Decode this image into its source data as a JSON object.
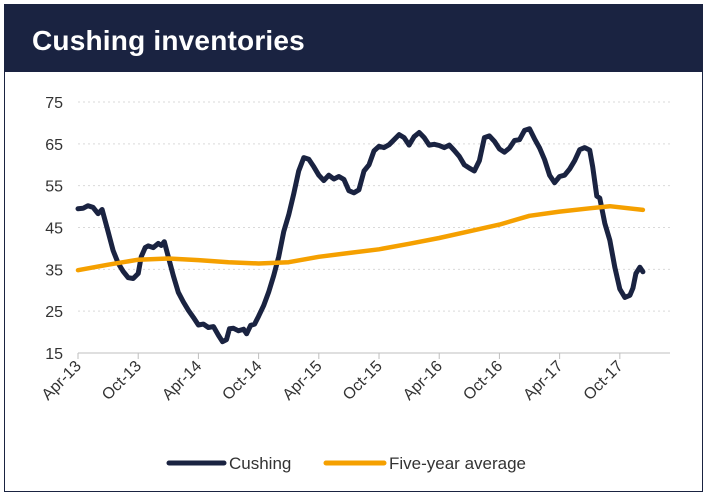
{
  "title": "Cushing inventories",
  "colors": {
    "header": "#1a2341",
    "cushing": "#1a2341",
    "average": "#f5a000",
    "grid": "#d9d9d9"
  },
  "chart_data": {
    "type": "line",
    "ylim": [
      15,
      75
    ],
    "yticks": [
      15,
      25,
      35,
      45,
      55,
      65,
      75
    ],
    "x_tick_labels": [
      "Apr-13",
      "Oct-13",
      "Apr-14",
      "Oct-14",
      "Apr-15",
      "Oct-15",
      "Apr-16",
      "Oct-16",
      "Apr-17",
      "Oct-17"
    ],
    "x_range_months": [
      0,
      59
    ],
    "grid": "horizontal dotted",
    "legend_position": "bottom-center",
    "series": [
      {
        "name": "Cushing",
        "color": "#1a2341",
        "points": [
          [
            0,
            49.5
          ],
          [
            0.5,
            49.6
          ],
          [
            1,
            50.2
          ],
          [
            1.5,
            49.8
          ],
          [
            2,
            48.3
          ],
          [
            2.4,
            49.3
          ],
          [
            3,
            44
          ],
          [
            3.5,
            39.5
          ],
          [
            4,
            36.5
          ],
          [
            4.5,
            34.5
          ],
          [
            5,
            33
          ],
          [
            5.5,
            32.8
          ],
          [
            6,
            34
          ],
          [
            6.3,
            38
          ],
          [
            6.7,
            40.2
          ],
          [
            7,
            40.6
          ],
          [
            7.5,
            40.2
          ],
          [
            8,
            41.2
          ],
          [
            8.3,
            40.7
          ],
          [
            8.6,
            41.6
          ],
          [
            9,
            38
          ],
          [
            9.5,
            33.5
          ],
          [
            10,
            29.5
          ],
          [
            10.5,
            27.2
          ],
          [
            11,
            25.2
          ],
          [
            11.5,
            23.5
          ],
          [
            12,
            21.7
          ],
          [
            12.5,
            21.9
          ],
          [
            13,
            21.1
          ],
          [
            13.5,
            21.3
          ],
          [
            14,
            19.2
          ],
          [
            14.4,
            17.7
          ],
          [
            14.8,
            18.2
          ],
          [
            15.1,
            20.8
          ],
          [
            15.5,
            20.9
          ],
          [
            16,
            20.3
          ],
          [
            16.5,
            20.7
          ],
          [
            16.8,
            19.6
          ],
          [
            17.2,
            21.6
          ],
          [
            17.6,
            21.9
          ],
          [
            18,
            23.8
          ],
          [
            18.5,
            26.3
          ],
          [
            19,
            29.5
          ],
          [
            19.5,
            33.5
          ],
          [
            20,
            38
          ],
          [
            20.5,
            44
          ],
          [
            21,
            48
          ],
          [
            21.5,
            53
          ],
          [
            22,
            58.5
          ],
          [
            22.5,
            61.7
          ],
          [
            23,
            61.3
          ],
          [
            23.5,
            59.5
          ],
          [
            24,
            57.5
          ],
          [
            24.5,
            56.2
          ],
          [
            25,
            57.5
          ],
          [
            25.5,
            56.6
          ],
          [
            26,
            57.2
          ],
          [
            26.5,
            56.5
          ],
          [
            27,
            53.8
          ],
          [
            27.5,
            53.3
          ],
          [
            28,
            54
          ],
          [
            28.5,
            58.5
          ],
          [
            29,
            60
          ],
          [
            29.5,
            63.3
          ],
          [
            30,
            64.4
          ],
          [
            30.5,
            64.1
          ],
          [
            31,
            64.8
          ],
          [
            31.5,
            66
          ],
          [
            32,
            67.2
          ],
          [
            32.5,
            66.5
          ],
          [
            33,
            64.7
          ],
          [
            33.5,
            66.7
          ],
          [
            34,
            67.7
          ],
          [
            34.5,
            66.5
          ],
          [
            35,
            64.7
          ],
          [
            35.5,
            64.9
          ],
          [
            36,
            64.6
          ],
          [
            36.5,
            64.1
          ],
          [
            37,
            64.7
          ],
          [
            37.5,
            63.4
          ],
          [
            38,
            62
          ],
          [
            38.5,
            60
          ],
          [
            39,
            59.2
          ],
          [
            39.5,
            58.5
          ],
          [
            40,
            61
          ],
          [
            40.5,
            66.5
          ],
          [
            41,
            66.9
          ],
          [
            41.5,
            65.6
          ],
          [
            42,
            63.8
          ],
          [
            42.5,
            63
          ],
          [
            43,
            64
          ],
          [
            43.5,
            65.8
          ],
          [
            44,
            66
          ],
          [
            44.5,
            68.2
          ],
          [
            45,
            68.6
          ],
          [
            45.5,
            66.2
          ],
          [
            46,
            64
          ],
          [
            46.5,
            61.2
          ],
          [
            47,
            57.5
          ],
          [
            47.5,
            55.7
          ],
          [
            48,
            57.2
          ],
          [
            48.5,
            57.5
          ],
          [
            49,
            59
          ],
          [
            49.5,
            61
          ],
          [
            50,
            63.6
          ],
          [
            50.5,
            64.1
          ],
          [
            51,
            63.5
          ],
          [
            51.3,
            59.5
          ],
          [
            51.7,
            52.5
          ],
          [
            52,
            52
          ],
          [
            52.5,
            46
          ],
          [
            53,
            42
          ],
          [
            53.5,
            35.5
          ],
          [
            54,
            30.3
          ],
          [
            54.5,
            28.3
          ],
          [
            55,
            28.8
          ],
          [
            55.3,
            30.5
          ],
          [
            55.6,
            34
          ],
          [
            56,
            35.5
          ],
          [
            56.3,
            34.4
          ]
        ]
      },
      {
        "name": "Five-year average",
        "color": "#f5a000",
        "points": [
          [
            0,
            34.8
          ],
          [
            3,
            36.1
          ],
          [
            6,
            37.3
          ],
          [
            9,
            37.6
          ],
          [
            12,
            37.2
          ],
          [
            15,
            36.7
          ],
          [
            18,
            36.4
          ],
          [
            21,
            36.7
          ],
          [
            24,
            38
          ],
          [
            27,
            38.9
          ],
          [
            30,
            39.8
          ],
          [
            33,
            41.1
          ],
          [
            36,
            42.5
          ],
          [
            39,
            44.1
          ],
          [
            42,
            45.7
          ],
          [
            45,
            47.8
          ],
          [
            48,
            48.8
          ],
          [
            51,
            49.6
          ],
          [
            53,
            50.1
          ],
          [
            56.3,
            49.2
          ]
        ]
      }
    ]
  }
}
